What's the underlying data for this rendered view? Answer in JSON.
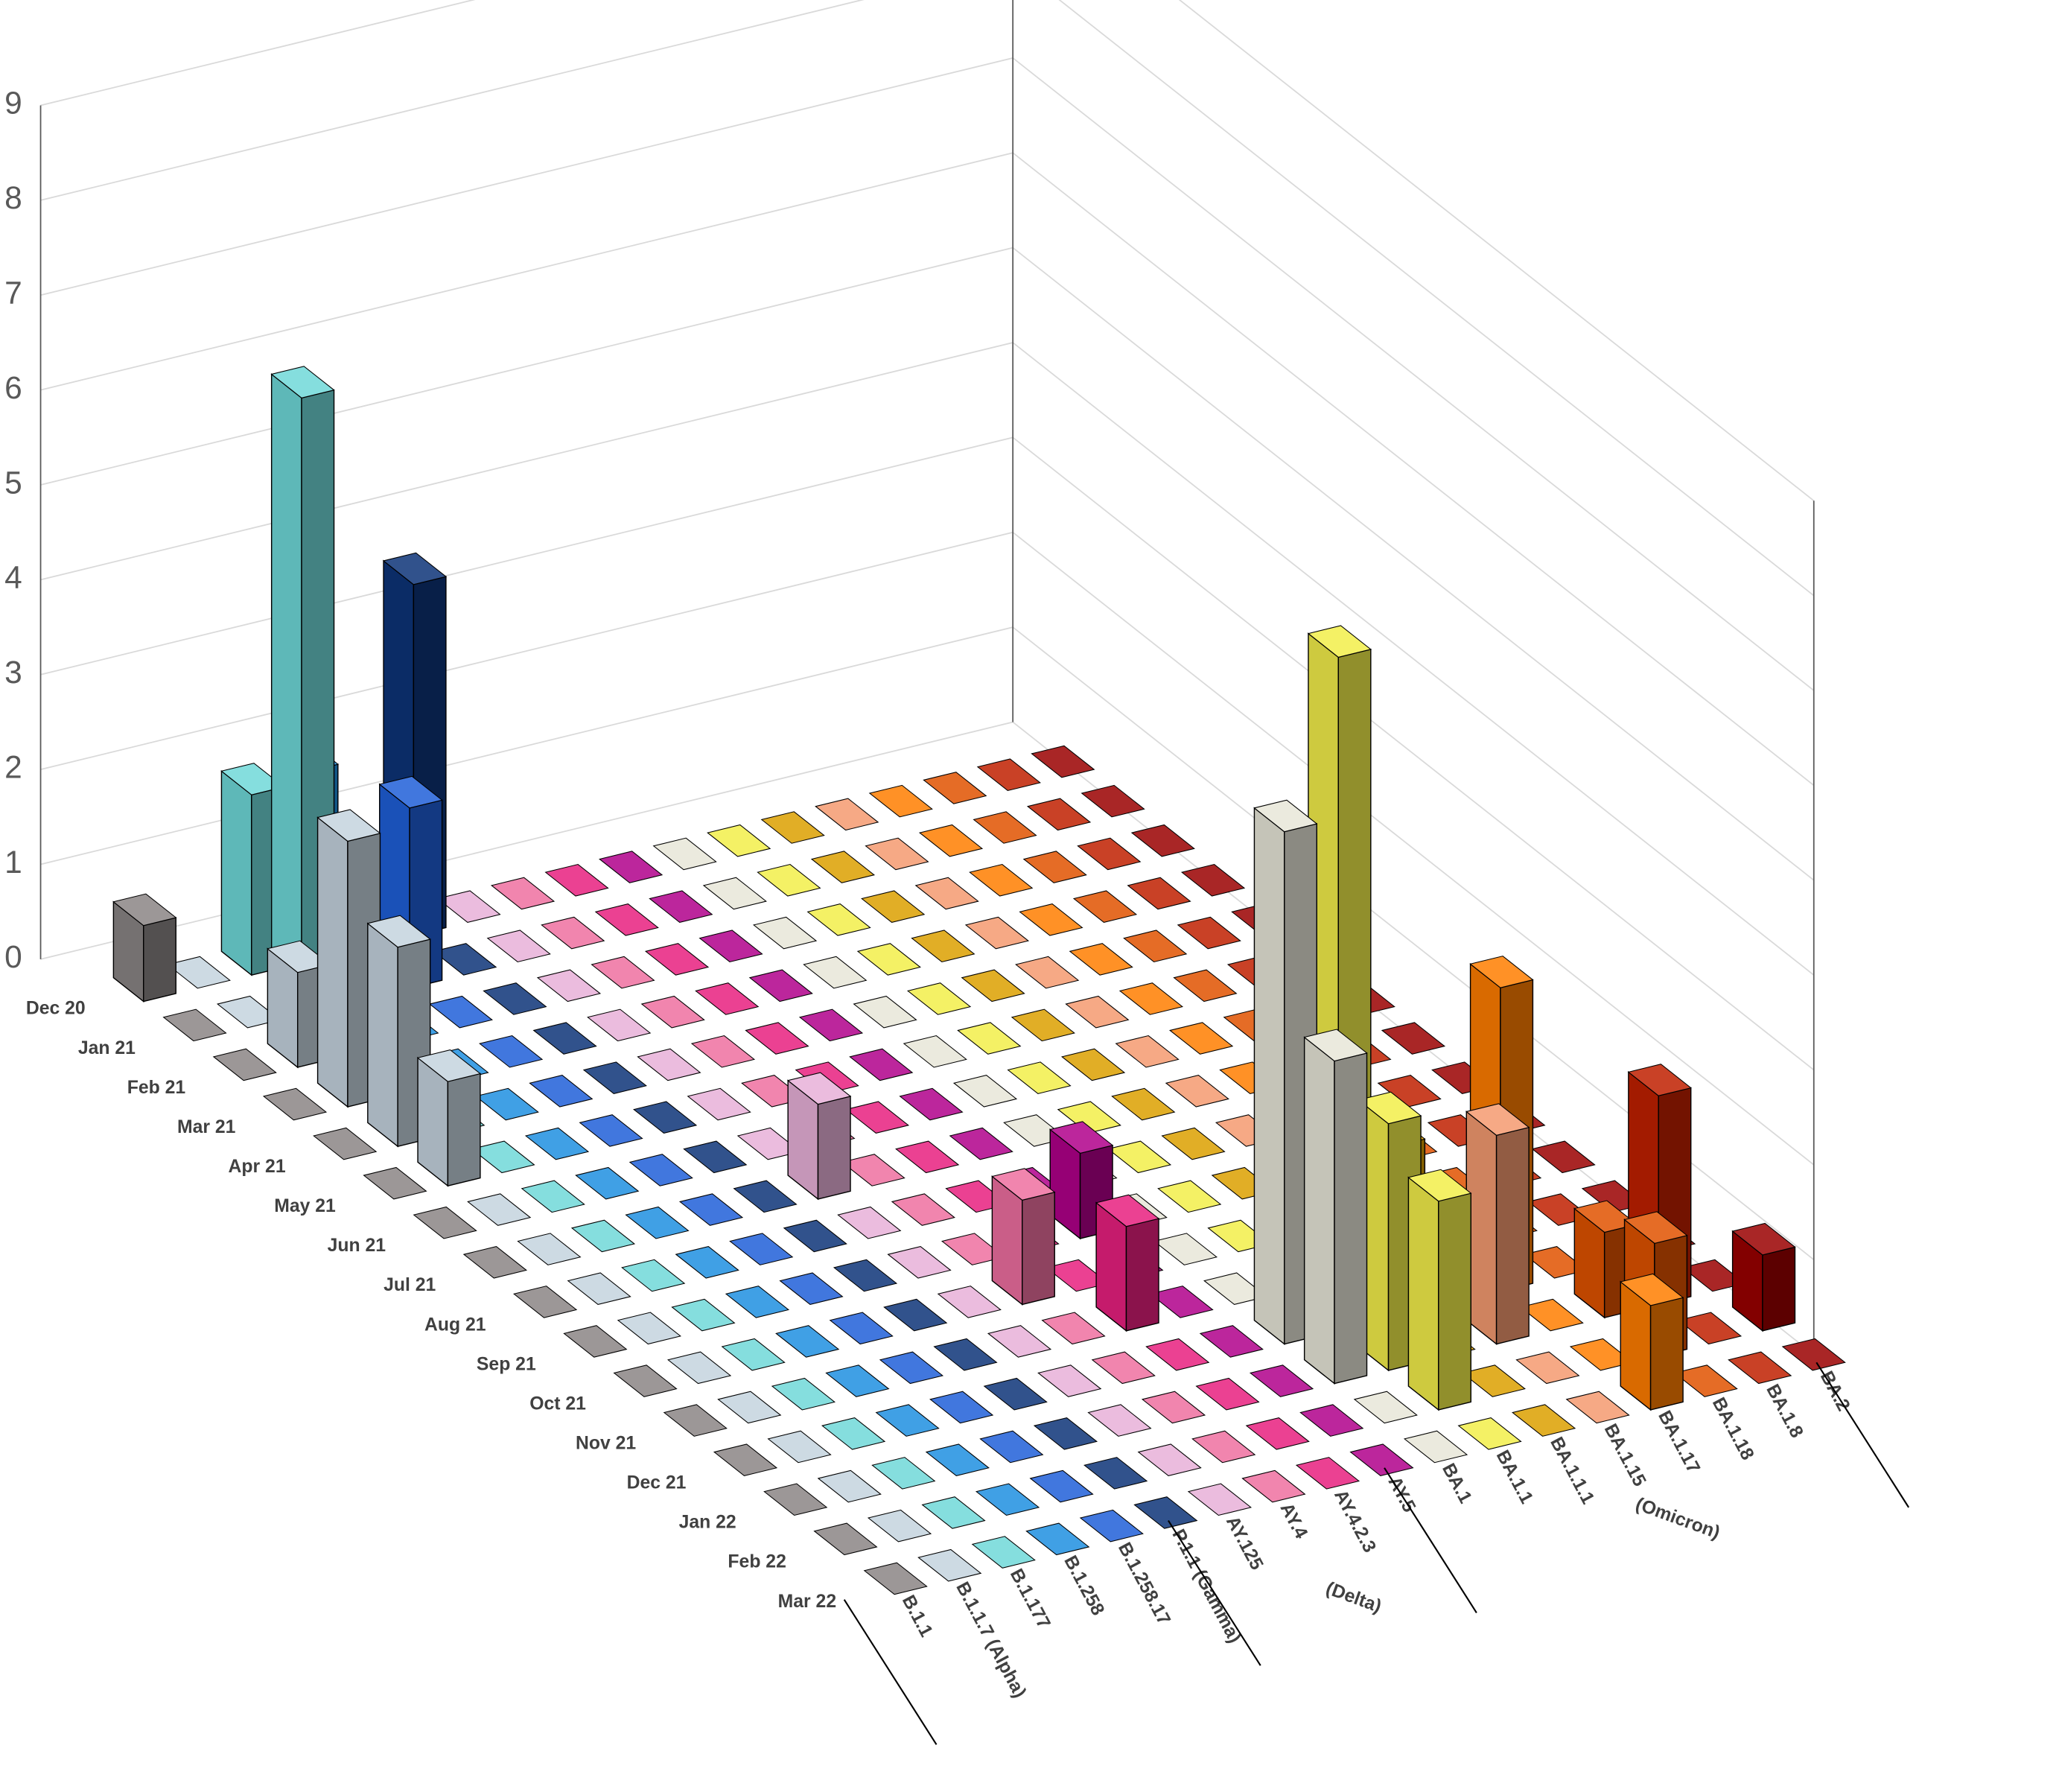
{
  "chart_data": {
    "type": "bar3d",
    "categories": [
      "Dec 20",
      "Jan 21",
      "Feb 21",
      "Mar 21",
      "Apr 21",
      "May 21",
      "Jun 21",
      "Jul 21",
      "Aug 21",
      "Sep 21",
      "Oct 21",
      "Nov 21",
      "Dec 21",
      "Jan 22",
      "Feb 22",
      "Mar 22"
    ],
    "series": [
      {
        "name": "B.1.1",
        "color": "#8a8585",
        "values": [
          0.8,
          0,
          0,
          0,
          0,
          0,
          0,
          0,
          0,
          0,
          0,
          0,
          0,
          0,
          0,
          0
        ]
      },
      {
        "name": "B.1.1.7 (Alpha)",
        "color": "#c4d3de",
        "values": [
          0,
          0,
          1.0,
          2.8,
          2.1,
          1.1,
          0,
          0,
          0,
          0,
          0,
          0,
          0,
          0,
          0,
          0
        ]
      },
      {
        "name": "B.1.177",
        "color": "#6fd8d8",
        "values": [
          1.9,
          6.5,
          0.6,
          0,
          0,
          0,
          0,
          0,
          0,
          0,
          0,
          0,
          0,
          0,
          0,
          0
        ]
      },
      {
        "name": "B.1.258",
        "color": "#1e8fe0",
        "values": [
          2.0,
          0,
          0,
          0,
          0,
          0,
          0,
          0,
          0,
          0,
          0,
          0,
          0,
          0,
          0,
          0
        ]
      },
      {
        "name": "B.1.258.17",
        "color": "#1f5fd8",
        "values": [
          0,
          1.9,
          0,
          0,
          0,
          0,
          0,
          0,
          0,
          0,
          0,
          0,
          0,
          0,
          0,
          0
        ]
      },
      {
        "name": "P.1.1 (Gamma)",
        "color": "#0d3478",
        "values": [
          3.7,
          0,
          0,
          0,
          0,
          0,
          0,
          0,
          0,
          0,
          0,
          0,
          0,
          0,
          0,
          0
        ]
      },
      {
        "name": "AY.125",
        "color": "#e8b0d8",
        "values": [
          0,
          0,
          0,
          0,
          0,
          0,
          0,
          1.0,
          0,
          0,
          0,
          0,
          0,
          0,
          0,
          0
        ]
      },
      {
        "name": "AY.4",
        "color": "#ee6fa0",
        "values": [
          0,
          0,
          0,
          0,
          0,
          0,
          0,
          0,
          0,
          0,
          1.1,
          0,
          0,
          0,
          0,
          0
        ]
      },
      {
        "name": "AY.4.2.3",
        "color": "#e8207f",
        "values": [
          0,
          0,
          0,
          0,
          0,
          0,
          0,
          0,
          0,
          0,
          0,
          1.1,
          0,
          0,
          0,
          0
        ]
      },
      {
        "name": "AY.5",
        "color": "#b0008a",
        "values": [
          0,
          0,
          0,
          0,
          0,
          0,
          0,
          0,
          0,
          0.9,
          0,
          0,
          0,
          0,
          0,
          0
        ]
      },
      {
        "name": "BA.1",
        "color": "#e8e6d8",
        "values": [
          0,
          0,
          0,
          0,
          0,
          0,
          0,
          0,
          0,
          0,
          0,
          0,
          5.4,
          3.4,
          0,
          0
        ]
      },
      {
        "name": "BA.1.1",
        "color": "#f2ee4a",
        "values": [
          0,
          0,
          0,
          0,
          0,
          0,
          0,
          0,
          0,
          0,
          0,
          0,
          7.1,
          2.6,
          2.2,
          0
        ]
      },
      {
        "name": "BA.1.1.1",
        "color": "#dca000",
        "values": [
          0,
          0,
          0,
          0,
          0,
          0,
          0,
          0,
          0,
          0,
          0,
          0,
          1.8,
          0,
          0,
          0
        ]
      },
      {
        "name": "BA.1.15",
        "color": "#f49a70",
        "values": [
          0,
          0,
          0,
          0,
          0,
          0,
          0,
          0,
          0,
          0,
          0,
          0,
          0,
          2.2,
          0,
          0
        ]
      },
      {
        "name": "BA.1.17",
        "color": "#ff7d00",
        "values": [
          0,
          0,
          0,
          0,
          0,
          0,
          0,
          0,
          0,
          0,
          0,
          0,
          3.2,
          0,
          0,
          1.1
        ]
      },
      {
        "name": "BA.1.18",
        "color": "#e05200",
        "values": [
          0,
          0,
          0,
          0,
          0,
          0,
          0,
          0,
          0,
          0,
          0,
          0,
          0,
          0.9,
          1.2,
          0
        ]
      },
      {
        "name": "BA.1.8",
        "color": "#c02000",
        "values": [
          0,
          0,
          0,
          0,
          0,
          0,
          0,
          0,
          0,
          0,
          0,
          0,
          0,
          2.2,
          0,
          0
        ]
      },
      {
        "name": "BA.2",
        "color": "#9a0000",
        "values": [
          0,
          0,
          0,
          0,
          0,
          0,
          0,
          0,
          0,
          0,
          0,
          0,
          0,
          0,
          0.8,
          0
        ]
      }
    ],
    "group_labels": [
      "(Delta)",
      "(Omicron)"
    ],
    "ylim": [
      0,
      9
    ],
    "yticks": [
      0,
      1,
      2,
      3,
      4,
      5,
      6,
      7,
      8,
      9
    ],
    "grid": true
  }
}
